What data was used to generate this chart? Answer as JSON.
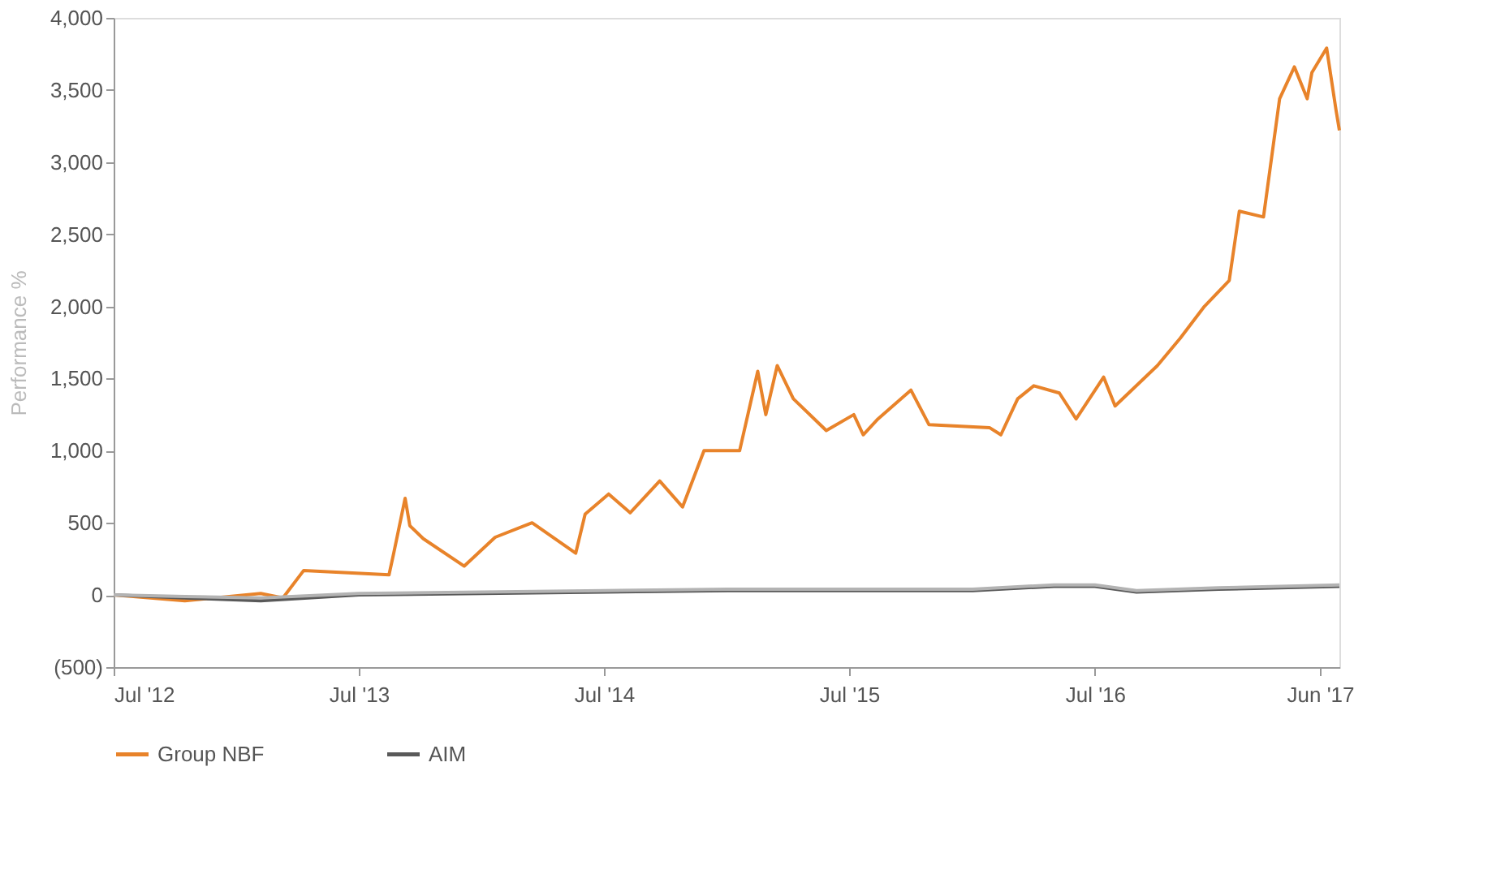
{
  "chart_data": {
    "type": "line",
    "ylabel": "Performance %",
    "legend": "bottom",
    "grid": false,
    "line_style": "solid",
    "marker": "none",
    "xlim": [
      "2012-07-01",
      "2017-06-30"
    ],
    "xticks": [
      {
        "value": "2012-07-01",
        "label": "Jul '12"
      },
      {
        "value": "2013-07-01",
        "label": "Jul '13"
      },
      {
        "value": "2014-07-01",
        "label": "Jul '14"
      },
      {
        "value": "2015-07-01",
        "label": "Jul '15"
      },
      {
        "value": "2016-07-01",
        "label": "Jul '16"
      },
      {
        "value": "2017-06-01",
        "label": "Jun '17"
      }
    ],
    "ylim": [
      -500,
      4000
    ],
    "yticks": [
      {
        "value": -500,
        "label": "(500)"
      },
      0,
      500,
      {
        "value": 1000,
        "label": "1,000"
      },
      {
        "value": 1500,
        "label": "1,500"
      },
      {
        "value": 2000,
        "label": "2,000"
      },
      {
        "value": 2500,
        "label": "2,500"
      },
      {
        "value": 3000,
        "label": "3,000"
      },
      {
        "value": 3500,
        "label": "3,500"
      },
      {
        "value": 4000,
        "label": "4,000"
      }
    ],
    "series": [
      {
        "name": "Group NBF",
        "color": "#e8832a",
        "x": [
          "2012-07-01",
          "2012-10-15",
          "2013-02-05",
          "2013-03-10",
          "2013-04-10",
          "2013-08-15",
          "2013-08-22",
          "2013-09-08",
          "2013-09-15",
          "2013-10-05",
          "2013-12-05",
          "2014-01-20",
          "2014-03-16",
          "2014-05-20",
          "2014-06-03",
          "2014-07-08",
          "2014-08-09",
          "2014-09-22",
          "2014-10-26",
          "2014-11-27",
          "2015-01-19",
          "2015-02-15",
          "2015-02-27",
          "2015-03-16",
          "2015-04-09",
          "2015-05-28",
          "2015-07-08",
          "2015-07-22",
          "2015-08-13",
          "2015-10-01",
          "2015-10-28",
          "2016-01-26",
          "2016-02-12",
          "2016-03-08",
          "2016-04-01",
          "2016-05-09",
          "2016-06-03",
          "2016-07-14",
          "2016-07-31",
          "2016-10-02",
          "2016-11-05",
          "2016-12-11",
          "2017-01-17",
          "2017-02-01",
          "2017-03-09",
          "2017-04-02",
          "2017-04-24",
          "2017-05-13",
          "2017-05-20",
          "2017-06-11",
          "2017-06-25",
          "2017-06-30"
        ],
        "values": [
          0,
          -40,
          10,
          -20,
          170,
          140,
          290,
          670,
          480,
          390,
          200,
          400,
          500,
          290,
          560,
          700,
          570,
          790,
          610,
          1000,
          1000,
          1550,
          1250,
          1590,
          1360,
          1140,
          1250,
          1110,
          1220,
          1420,
          1180,
          1160,
          1110,
          1360,
          1450,
          1400,
          1220,
          1510,
          1310,
          1590,
          1780,
          2000,
          2180,
          2660,
          2620,
          3440,
          3660,
          3440,
          3620,
          3790,
          3360,
          3220
        ]
      },
      {
        "name": "AIM",
        "color": "#595959",
        "x": [
          "2012-07-01",
          "2012-10-15",
          "2013-02-05",
          "2013-07-01",
          "2014-01-01",
          "2014-07-01",
          "2015-01-01",
          "2015-07-01",
          "2016-01-01",
          "2016-05-01",
          "2016-07-01",
          "2016-09-01",
          "2017-01-01",
          "2017-06-30"
        ],
        "values": [
          0,
          -20,
          -40,
          0,
          10,
          20,
          30,
          30,
          30,
          60,
          60,
          20,
          40,
          60
        ]
      },
      {
        "color": "#b3b3b3",
        "x": [
          "2012-07-01",
          "2012-10-15",
          "2013-02-05",
          "2013-07-01",
          "2014-01-01",
          "2014-07-01",
          "2015-01-01",
          "2015-07-01",
          "2016-01-01",
          "2016-05-01",
          "2016-07-01",
          "2016-09-01",
          "2017-01-01",
          "2017-06-30"
        ],
        "values": [
          0,
          -10,
          -20,
          10,
          20,
          30,
          40,
          40,
          40,
          70,
          70,
          30,
          50,
          70
        ]
      }
    ]
  }
}
